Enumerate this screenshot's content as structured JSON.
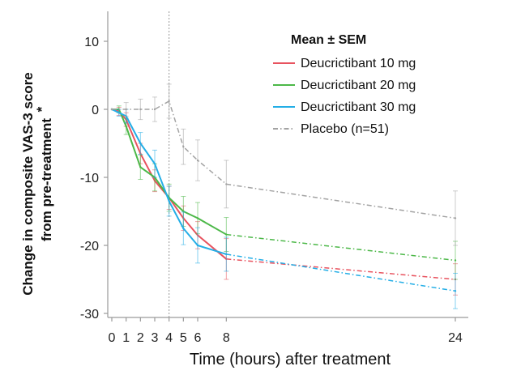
{
  "chart_data": {
    "type": "line",
    "xlabel": "Time (hours) after treatment",
    "ylabel_line1": "Change in composite VAS-3 score",
    "ylabel_line2": "from pre-treatment",
    "ylabel_note": "*",
    "legend_title": "Mean ± SEM",
    "legend_position": "top-right",
    "xticks": [
      0,
      1,
      2,
      3,
      4,
      5,
      6,
      8,
      24
    ],
    "yticks": [
      10,
      0,
      -10,
      -20,
      -30
    ],
    "xlim": [
      0,
      25
    ],
    "ylim": [
      -31,
      14
    ],
    "reference_line_x": 4,
    "solid_until_x": 8,
    "series": [
      {
        "name": "Deucrictibant 10 mg",
        "color": "#e8535f",
        "style": "solid",
        "x": [
          0,
          0.5,
          1,
          2,
          3,
          4,
          5,
          6,
          8,
          24
        ],
        "y": [
          0,
          -0.3,
          -1.5,
          -6.5,
          -10.5,
          -13.0,
          -16.0,
          -18.5,
          -22.0,
          -25.0
        ],
        "sem": [
          0,
          0.6,
          1.0,
          1.5,
          1.6,
          1.7,
          1.8,
          2.0,
          3.0,
          2.3
        ]
      },
      {
        "name": "Deucrictibant 20 mg",
        "color": "#4cb848",
        "style": "solid",
        "x": [
          0,
          0.5,
          1,
          2,
          3,
          4,
          5,
          6,
          8,
          24
        ],
        "y": [
          0,
          0,
          -2.5,
          -8.5,
          -10.0,
          -13.0,
          -15.0,
          -16.0,
          -18.4,
          -22.2
        ],
        "sem": [
          0,
          0.5,
          1.2,
          1.8,
          2.0,
          2.0,
          2.2,
          2.3,
          2.5,
          2.8
        ]
      },
      {
        "name": "Deucrictibant 30 mg",
        "color": "#24aee6",
        "style": "solid",
        "x": [
          0,
          0.5,
          1,
          2,
          3,
          4,
          5,
          6,
          8,
          24
        ],
        "y": [
          0,
          -0.5,
          -1.0,
          -5.0,
          -8.0,
          -13.5,
          -17.5,
          -20.0,
          -21.3,
          -26.7
        ],
        "sem": [
          0,
          0.5,
          1.0,
          1.6,
          2.0,
          2.2,
          2.4,
          2.6,
          2.5,
          2.6
        ]
      },
      {
        "name": "Placebo (n=51)",
        "color": "#a3a3a3",
        "style": "dashdot",
        "x": [
          0,
          1,
          2,
          3,
          4,
          5,
          6,
          8,
          24
        ],
        "y": [
          0,
          0,
          0,
          0,
          1.2,
          -5.5,
          -7.5,
          -11.0,
          -16.0
        ],
        "sem": [
          0,
          1.0,
          1.5,
          1.8,
          2.5,
          2.6,
          3.0,
          3.5,
          4.0
        ]
      }
    ]
  }
}
